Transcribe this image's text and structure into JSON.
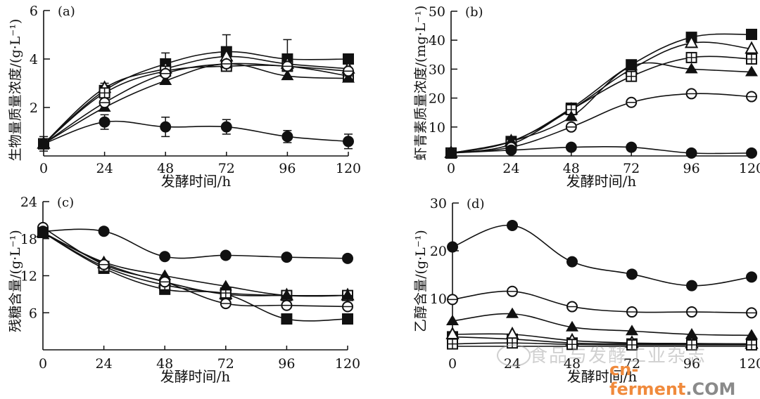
{
  "figure": {
    "xlabel": "发酵时间/h",
    "watermark": {
      "journal": "食品与发酵工业杂志",
      "site_a": "cn-ferment",
      "site_b": ".COM",
      "accent": "#f08a3c"
    }
  },
  "series_markers": [
    "filled-square",
    "open-triangle",
    "open-square-cross",
    "filled-triangle",
    "open-circle-bar",
    "filled-circle"
  ],
  "chart_data": [
    {
      "type": "line",
      "panel": "(a)",
      "ylabel": "生物量质量浓度/(g·L⁻¹)",
      "xlabel": "发酵时间/h",
      "x": [
        0,
        24,
        48,
        72,
        96,
        120
      ],
      "xticks": [
        "0",
        "24",
        "48",
        "72",
        "96",
        "120"
      ],
      "yticks": [
        "2",
        "4",
        "6"
      ],
      "xlim": [
        0,
        120
      ],
      "ylim": [
        0,
        6
      ],
      "series": [
        {
          "name": "filled-square",
          "values": [
            0.5,
            2.7,
            3.8,
            4.3,
            4.0,
            4.0
          ]
        },
        {
          "name": "open-triangle",
          "values": [
            0.5,
            2.8,
            3.6,
            4.1,
            3.8,
            3.6
          ]
        },
        {
          "name": "open-square-cross",
          "values": [
            0.5,
            2.6,
            3.5,
            3.7,
            3.7,
            3.3
          ]
        },
        {
          "name": "filled-triangle",
          "values": [
            0.5,
            2.0,
            3.1,
            3.8,
            3.3,
            3.2
          ]
        },
        {
          "name": "open-circle-bar",
          "values": [
            0.5,
            2.2,
            3.4,
            3.8,
            3.7,
            3.5
          ]
        },
        {
          "name": "filled-circle",
          "values": [
            0.5,
            1.4,
            1.2,
            1.2,
            0.8,
            0.6
          ]
        }
      ],
      "error_bars": {
        "filled-square": [
          0.3,
          0.3,
          0.45,
          0.7,
          0.8,
          0.1
        ],
        "filled-circle": [
          0.2,
          0.3,
          0.4,
          0.3,
          0.25,
          0.3
        ]
      }
    },
    {
      "type": "line",
      "panel": "(b)",
      "ylabel": "虾青素质量浓度/(mg·L⁻¹)",
      "xlabel": "发酵时间/h",
      "x": [
        0,
        24,
        48,
        72,
        96,
        120
      ],
      "xticks": [
        "0",
        "24",
        "48",
        "72",
        "96",
        "120"
      ],
      "yticks": [
        "10",
        "20",
        "30",
        "40",
        "50"
      ],
      "xlim": [
        0,
        120
      ],
      "ylim": [
        0,
        50
      ],
      "series": [
        {
          "name": "filled-square",
          "values": [
            1,
            5,
            16.5,
            31.5,
            41,
            42
          ]
        },
        {
          "name": "open-triangle",
          "values": [
            1,
            5,
            16,
            30,
            39,
            37
          ]
        },
        {
          "name": "open-square-cross",
          "values": [
            1,
            4,
            16,
            27.5,
            34,
            33.5
          ]
        },
        {
          "name": "filled-triangle",
          "values": [
            1,
            5,
            13.5,
            31,
            30,
            29
          ]
        },
        {
          "name": "open-circle-bar",
          "values": [
            1,
            3,
            10,
            18.5,
            21.5,
            20.5
          ]
        },
        {
          "name": "filled-circle",
          "values": [
            1,
            2,
            3,
            3,
            1,
            1
          ]
        }
      ]
    },
    {
      "type": "line",
      "panel": "(c)",
      "ylabel": "残糖含量/(g·L⁻¹)",
      "xlabel": "发酵时间/h",
      "x": [
        0,
        24,
        48,
        72,
        96,
        120
      ],
      "xticks": [
        "0",
        "24",
        "48",
        "72",
        "96",
        "120"
      ],
      "yticks": [
        "6",
        "12",
        "18",
        "24"
      ],
      "xlim": [
        0,
        120
      ],
      "ylim": [
        0,
        24
      ],
      "series": [
        {
          "name": "filled-square",
          "values": [
            19,
            13.2,
            9.8,
            9.0,
            5.0,
            5.0
          ]
        },
        {
          "name": "open-triangle",
          "values": [
            19,
            14,
            11,
            9.0,
            8.8,
            8.8
          ]
        },
        {
          "name": "open-square-cross",
          "values": [
            19,
            13.5,
            10.5,
            9.2,
            8.8,
            8.8
          ]
        },
        {
          "name": "filled-triangle",
          "values": [
            19,
            14.2,
            12,
            10.3,
            8.8,
            8.8
          ]
        },
        {
          "name": "open-circle-bar",
          "values": [
            19.8,
            13.8,
            11,
            7.5,
            7.2,
            7.0
          ]
        },
        {
          "name": "filled-circle",
          "values": [
            19.2,
            19.2,
            15.1,
            15.3,
            15.0,
            14.8
          ]
        }
      ]
    },
    {
      "type": "line",
      "panel": "(d)",
      "ylabel": "乙醇含量/(g·L⁻¹)",
      "xlabel": "发酵时间/h",
      "x": [
        0,
        24,
        48,
        72,
        96,
        120
      ],
      "xticks": [
        "0",
        "24",
        "48",
        "72",
        "96",
        "120"
      ],
      "yticks": [
        "10",
        "20",
        "30"
      ],
      "xlim": [
        0,
        120
      ],
      "ylim": [
        0,
        30
      ],
      "series": [
        {
          "name": "filled-square",
          "values": [
            2,
            1.5,
            0.7,
            0.5,
            0.5,
            0.5
          ]
        },
        {
          "name": "open-triangle",
          "values": [
            2.5,
            2.5,
            1.2,
            0.7,
            0.6,
            0.5
          ]
        },
        {
          "name": "open-square-cross",
          "values": [
            0.5,
            0.7,
            0.4,
            0.3,
            0.3,
            0.3
          ]
        },
        {
          "name": "filled-triangle",
          "values": [
            5.3,
            6.8,
            4.0,
            3.2,
            2.5,
            2.3
          ]
        },
        {
          "name": "open-circle-bar",
          "values": [
            9.8,
            11.5,
            8.3,
            7.2,
            7.2,
            7.0
          ]
        },
        {
          "name": "filled-circle",
          "values": [
            20.8,
            25.3,
            17.7,
            15.1,
            12.7,
            14.5
          ]
        }
      ]
    }
  ]
}
